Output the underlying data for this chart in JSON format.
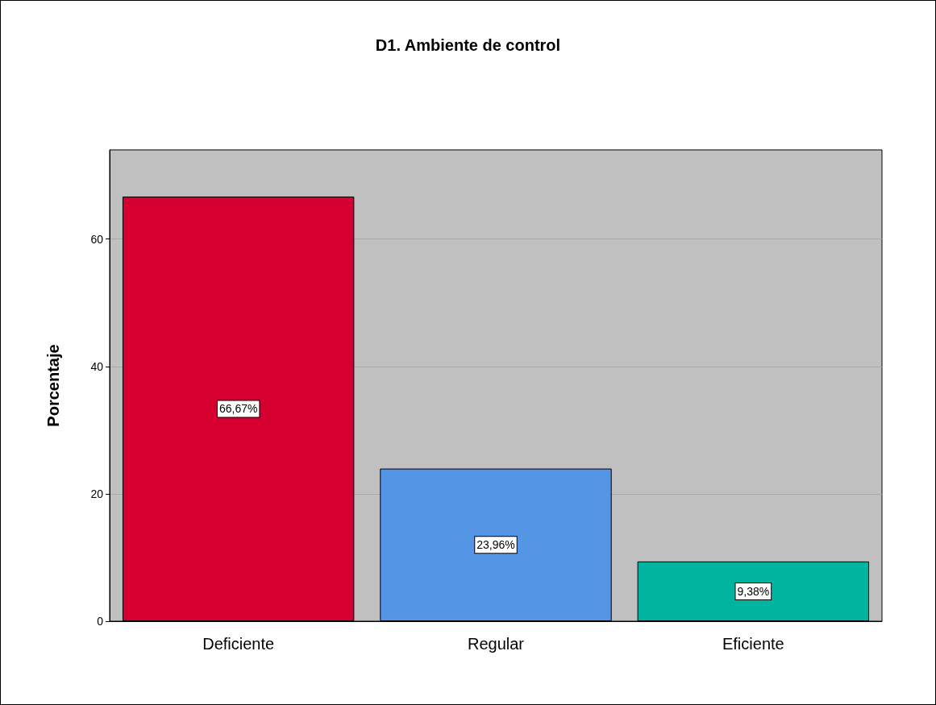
{
  "chart_data": {
    "type": "bar",
    "title": "D1. Ambiente de control",
    "ylabel": "Porcentaje",
    "categories": [
      "Deficiente",
      "Regular",
      "Eficiente"
    ],
    "values": [
      66.67,
      23.96,
      9.38
    ],
    "colors": [
      "#d60030",
      "#5595e5",
      "#00b4a0"
    ],
    "value_labels": [
      "66,67%",
      "23,96%",
      "9,38%"
    ],
    "ylim": [
      0,
      74
    ],
    "yticks": [
      0,
      20,
      40,
      60
    ],
    "grid": "y"
  }
}
